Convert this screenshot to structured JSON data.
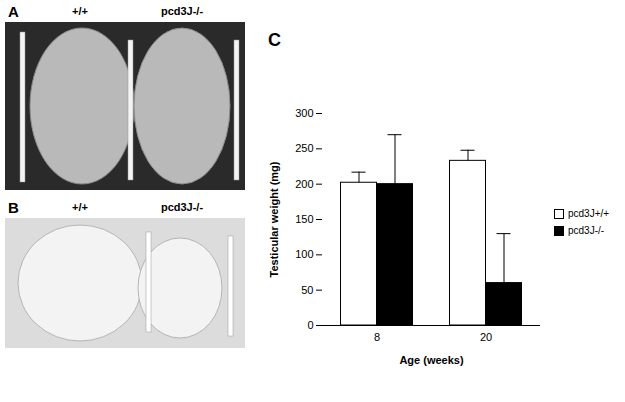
{
  "panels": [
    {
      "label": "A",
      "groups": [
        "+/+",
        "pcd3J-/-"
      ]
    },
    {
      "label": "B",
      "groups": [
        "+/+",
        "pcd3J-/-"
      ]
    }
  ],
  "chart_data": {
    "panel_label": "C",
    "type": "bar",
    "x_label": "Age (weeks)",
    "y_label": "Testicular weight (mg)",
    "categories": [
      "8",
      "20"
    ],
    "series": [
      {
        "name": "pcd3J+/+",
        "color": "#ffffff",
        "values": [
          202,
          233
        ],
        "errors": [
          15,
          15
        ]
      },
      {
        "name": "pcd3J-/-",
        "color": "#000000",
        "values": [
          200,
          60
        ],
        "errors": [
          70,
          70
        ]
      }
    ],
    "ylim": [
      0,
      300
    ],
    "yticks": [
      0,
      50,
      100,
      150,
      200,
      250,
      300
    ],
    "grid": false,
    "legend": "right"
  }
}
